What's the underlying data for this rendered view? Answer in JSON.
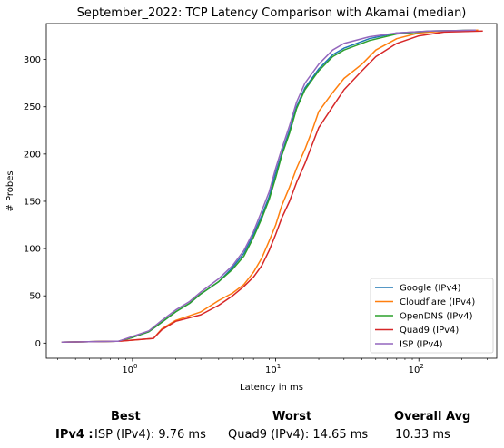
{
  "chart_data": {
    "type": "line",
    "title": "September_2022: TCP Latency Comparison with Akamai (median)",
    "xlabel": "Latency in ms",
    "ylabel": "# Probes",
    "xscale": "log",
    "xlim": [
      0.25,
      350
    ],
    "ylim": [
      -16,
      338
    ],
    "xticks": [
      {
        "value": 1,
        "label": "10^0"
      },
      {
        "value": 10,
        "label": "10^1"
      },
      {
        "value": 100,
        "label": "10^2"
      }
    ],
    "yticks": [
      0,
      50,
      100,
      150,
      200,
      250,
      300
    ],
    "grid": false,
    "legend": "bottom-right",
    "series": [
      {
        "name": "Google (IPv4)",
        "color": "#1f77b4",
        "points": [
          [
            0.32,
            1
          ],
          [
            0.8,
            2
          ],
          [
            1.0,
            6
          ],
          [
            1.3,
            12
          ],
          [
            1.6,
            22
          ],
          [
            2.0,
            33
          ],
          [
            2.5,
            42
          ],
          [
            3.0,
            52
          ],
          [
            4.0,
            65
          ],
          [
            5.0,
            80
          ],
          [
            6.0,
            95
          ],
          [
            7.0,
            115
          ],
          [
            8.0,
            135
          ],
          [
            9.0,
            155
          ],
          [
            10.0,
            180
          ],
          [
            11.0,
            200
          ],
          [
            12.5,
            225
          ],
          [
            14.0,
            250
          ],
          [
            16.0,
            270
          ],
          [
            20.0,
            290
          ],
          [
            25.0,
            305
          ],
          [
            30.0,
            312
          ],
          [
            45.0,
            322
          ],
          [
            70.0,
            328
          ],
          [
            120.0,
            330
          ],
          [
            250.0,
            331
          ]
        ]
      },
      {
        "name": "Cloudflare (IPv4)",
        "color": "#ff7f0e",
        "points": [
          [
            0.32,
            1
          ],
          [
            0.8,
            2
          ],
          [
            1.4,
            5
          ],
          [
            1.6,
            15
          ],
          [
            2.0,
            24
          ],
          [
            3.0,
            33
          ],
          [
            4.0,
            45
          ],
          [
            5.0,
            53
          ],
          [
            6.0,
            62
          ],
          [
            7.0,
            75
          ],
          [
            8.0,
            90
          ],
          [
            9.0,
            108
          ],
          [
            10.0,
            125
          ],
          [
            11.0,
            145
          ],
          [
            12.5,
            165
          ],
          [
            14.0,
            185
          ],
          [
            16.0,
            205
          ],
          [
            18.0,
            225
          ],
          [
            20.0,
            245
          ],
          [
            25.0,
            265
          ],
          [
            30.0,
            280
          ],
          [
            40.0,
            295
          ],
          [
            50.0,
            310
          ],
          [
            70.0,
            322
          ],
          [
            100.0,
            328
          ],
          [
            150.0,
            330
          ],
          [
            260.0,
            331
          ]
        ]
      },
      {
        "name": "OpenDNS (IPv4)",
        "color": "#2ca02c",
        "points": [
          [
            0.32,
            1
          ],
          [
            0.8,
            2
          ],
          [
            1.0,
            6
          ],
          [
            1.3,
            12
          ],
          [
            1.6,
            22
          ],
          [
            2.0,
            33
          ],
          [
            2.5,
            42
          ],
          [
            3.0,
            52
          ],
          [
            4.0,
            65
          ],
          [
            5.0,
            78
          ],
          [
            6.0,
            92
          ],
          [
            7.0,
            112
          ],
          [
            8.0,
            132
          ],
          [
            9.0,
            152
          ],
          [
            10.0,
            175
          ],
          [
            11.0,
            198
          ],
          [
            12.5,
            222
          ],
          [
            14.0,
            248
          ],
          [
            16.0,
            268
          ],
          [
            20.0,
            288
          ],
          [
            25.0,
            303
          ],
          [
            30.0,
            310
          ],
          [
            45.0,
            320
          ],
          [
            70.0,
            327
          ],
          [
            120.0,
            330
          ],
          [
            250.0,
            331
          ]
        ]
      },
      {
        "name": "Quad9 (IPv4)",
        "color": "#d62728",
        "points": [
          [
            0.32,
            1
          ],
          [
            0.8,
            2
          ],
          [
            1.4,
            5
          ],
          [
            1.6,
            14
          ],
          [
            2.0,
            23
          ],
          [
            3.0,
            30
          ],
          [
            4.0,
            40
          ],
          [
            5.0,
            50
          ],
          [
            6.0,
            60
          ],
          [
            7.0,
            70
          ],
          [
            8.0,
            82
          ],
          [
            9.0,
            98
          ],
          [
            10.0,
            115
          ],
          [
            11.0,
            132
          ],
          [
            12.5,
            150
          ],
          [
            14.0,
            170
          ],
          [
            16.0,
            190
          ],
          [
            18.0,
            210
          ],
          [
            20.0,
            228
          ],
          [
            25.0,
            250
          ],
          [
            30.0,
            268
          ],
          [
            40.0,
            288
          ],
          [
            50.0,
            303
          ],
          [
            70.0,
            317
          ],
          [
            100.0,
            325
          ],
          [
            150.0,
            329
          ],
          [
            280.0,
            330
          ]
        ]
      },
      {
        "name": "ISP (IPv4)",
        "color": "#9467bd",
        "points": [
          [
            0.32,
            1
          ],
          [
            0.8,
            2
          ],
          [
            1.0,
            7
          ],
          [
            1.3,
            13
          ],
          [
            1.6,
            24
          ],
          [
            2.0,
            35
          ],
          [
            2.5,
            44
          ],
          [
            3.0,
            54
          ],
          [
            4.0,
            68
          ],
          [
            5.0,
            82
          ],
          [
            6.0,
            98
          ],
          [
            7.0,
            118
          ],
          [
            8.0,
            140
          ],
          [
            9.0,
            160
          ],
          [
            10.0,
            185
          ],
          [
            11.0,
            205
          ],
          [
            12.5,
            230
          ],
          [
            14.0,
            255
          ],
          [
            16.0,
            275
          ],
          [
            20.0,
            295
          ],
          [
            25.0,
            310
          ],
          [
            30.0,
            317
          ],
          [
            45.0,
            324
          ],
          [
            70.0,
            328
          ],
          [
            120.0,
            330
          ],
          [
            250.0,
            331
          ]
        ]
      }
    ]
  },
  "summary": {
    "best_header": "Best",
    "worst_header": "Worst",
    "avg_header": "Overall Avg",
    "row_label": "IPv4 :",
    "best_value": "ISP (IPv4): 9.76 ms",
    "worst_value": "Quad9 (IPv4): 14.65 ms",
    "avg_value": "10.33 ms"
  }
}
